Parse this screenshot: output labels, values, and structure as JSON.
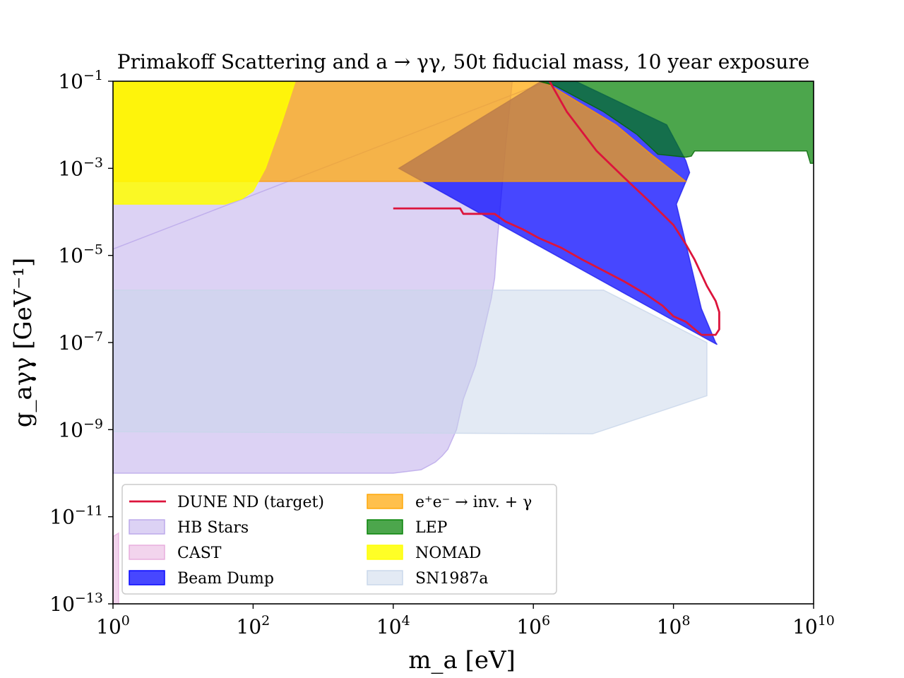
{
  "chart_data": {
    "type": "area",
    "title": "Primakoff Scattering and a → γγ, 50t fiducial mass, 10 year exposure",
    "xlabel": "m_a [eV]",
    "ylabel": "g_aγγ [GeV⁻¹]",
    "x_scale": "log",
    "y_scale": "log",
    "xlim": [
      1,
      10000000000
    ],
    "ylim": [
      1e-13,
      0.1
    ],
    "x_ticks": [
      {
        "base": "10",
        "exp": "0"
      },
      {
        "base": "10",
        "exp": "2"
      },
      {
        "base": "10",
        "exp": "4"
      },
      {
        "base": "10",
        "exp": "6"
      },
      {
        "base": "10",
        "exp": "8"
      },
      {
        "base": "10",
        "exp": "10"
      }
    ],
    "y_ticks": [
      {
        "base": "10",
        "exp": "−1"
      },
      {
        "base": "10",
        "exp": "−3"
      },
      {
        "base": "10",
        "exp": "−5"
      },
      {
        "base": "10",
        "exp": "−7"
      },
      {
        "base": "10",
        "exp": "−9"
      },
      {
        "base": "10",
        "exp": "−11"
      },
      {
        "base": "10",
        "exp": "−13"
      }
    ],
    "legend_position": "lower-left",
    "series": [
      {
        "name": "HB Stars",
        "kind": "region",
        "color": "#b9a6ea",
        "alpha": 0.5,
        "edge": "#b9a6ea",
        "points": [
          [
            1,
            1.4e-05
          ],
          [
            1600000.0,
            0.1
          ],
          [
            1,
            0.1
          ],
          [
            1,
            1e-10
          ],
          [
            10000.0,
            1e-10
          ],
          [
            25000.0,
            1.2e-10
          ],
          [
            40000.0,
            1.8e-10
          ],
          [
            50000.0,
            2.5e-10
          ],
          [
            60000.0,
            3.5e-10
          ],
          [
            80000.0,
            1e-09
          ],
          [
            100000.0,
            5e-09
          ],
          [
            150000.0,
            3e-08
          ],
          [
            250000.0,
            1e-06
          ],
          [
            280000.0,
            3e-06
          ],
          [
            300000.0,
            1.5e-05
          ],
          [
            400000.0,
            0.003
          ],
          [
            500000.0,
            0.1
          ],
          [
            1600000.0,
            0.1
          ]
        ]
      },
      {
        "name": "CAST",
        "kind": "region",
        "color": "#e6aadc",
        "alpha": 0.5,
        "edge": "#e6aadc",
        "points": [
          [
            1,
            3.5e-12
          ],
          [
            1.2,
            4.2e-12
          ],
          [
            1.2,
            1e-13
          ],
          [
            1,
            1e-13
          ]
        ]
      },
      {
        "name": "SN1987a",
        "kind": "region",
        "color": "#c8d6ea",
        "alpha": 0.5,
        "edge": "#c8d6ea",
        "points": [
          [
            1,
            1.6e-06
          ],
          [
            10000000.0,
            1.6e-06
          ],
          [
            300000000.0,
            1e-07
          ],
          [
            300000000.0,
            6e-09
          ],
          [
            7000000.0,
            8e-10
          ],
          [
            1,
            9e-10
          ]
        ]
      },
      {
        "name": "Beam Dump",
        "kind": "region",
        "color": "#0000ff",
        "alpha": 0.72,
        "edge": "#2020ee",
        "points": [
          [
            4000000.0,
            0.1
          ],
          [
            80000000.0,
            0.01
          ],
          [
            150000000.0,
            0.0015
          ],
          [
            170000000.0,
            0.0008
          ],
          [
            110000000.0,
            0.00015
          ],
          [
            250000000.0,
            6e-07
          ],
          [
            400000000.0,
            1e-07
          ],
          [
            420000000.0,
            9e-08
          ],
          [
            300000000.0,
            1.2e-07
          ],
          [
            12000.0,
            0.001
          ],
          [
            1300000.0,
            0.1
          ]
        ]
      },
      {
        "name": "e⁺e⁻ → inv. + γ",
        "kind": "region",
        "color": "#ffa500",
        "alpha": 0.7,
        "edge": "#ff9800",
        "points": [
          [
            1,
            0.1
          ],
          [
            1400000.0,
            0.1
          ],
          [
            15000000.0,
            0.01
          ],
          [
            50000000.0,
            0.002
          ],
          [
            150000000.0,
            0.0005
          ],
          [
            1,
            0.0005
          ]
        ]
      },
      {
        "name": "LEP",
        "kind": "region",
        "color": "#008000",
        "alpha": 0.7,
        "edge": "#006400",
        "points": [
          [
            1200000.0,
            0.1
          ],
          [
            10000000000.0,
            0.1
          ],
          [
            10000000000.0,
            0.0013
          ],
          [
            9000000000.0,
            0.0013
          ],
          [
            8000000000.0,
            0.0025
          ],
          [
            200000000.0,
            0.0025
          ],
          [
            180000000.0,
            0.0019
          ],
          [
            150000000.0,
            0.0018
          ],
          [
            80000000.0,
            0.002
          ],
          [
            60000000.0,
            0.0021
          ],
          [
            30000000.0,
            0.006
          ],
          [
            10000000.0,
            0.02
          ],
          [
            2000000.0,
            0.08
          ]
        ]
      },
      {
        "name": "NOMAD",
        "kind": "region",
        "color": "#ffff00",
        "alpha": 0.85,
        "edge": "#ffff00",
        "points": [
          [
            1,
            0.1
          ],
          [
            400,
            0.1
          ],
          [
            250,
            0.01
          ],
          [
            150,
            0.001
          ],
          [
            100,
            0.0003
          ],
          [
            70,
            0.0002
          ],
          [
            40,
            0.00015
          ],
          [
            1,
            0.00015
          ]
        ]
      },
      {
        "name": "DUNE ND (target)",
        "kind": "line",
        "color": "#dc143c",
        "points": [
          [
            10000.0,
            0.00012
          ],
          [
            90000.0,
            0.00012
          ],
          [
            100000.0,
            9e-05
          ],
          [
            280000.0,
            9e-05
          ],
          [
            400000.0,
            6e-05
          ],
          [
            700000.0,
            4e-05
          ],
          [
            1200000.0,
            2.5e-05
          ],
          [
            2500000.0,
            1.5e-05
          ],
          [
            5000000.0,
            8e-06
          ],
          [
            10000000.0,
            4.5e-06
          ],
          [
            20000000.0,
            2.5e-06
          ],
          [
            40000000.0,
            1.3e-06
          ],
          [
            70000000.0,
            7e-07
          ],
          [
            100000000.0,
            4e-07
          ],
          [
            150000000.0,
            3e-07
          ],
          [
            250000000.0,
            1.5e-07
          ],
          [
            400000000.0,
            1.5e-07
          ],
          [
            450000000.0,
            2e-07
          ],
          [
            450000000.0,
            5e-07
          ],
          [
            400000000.0,
            9e-07
          ],
          [
            300000000.0,
            2e-06
          ],
          [
            200000000.0,
            8e-06
          ],
          [
            150000000.0,
            1.8e-05
          ],
          [
            100000000.0,
            5e-05
          ],
          [
            50000000.0,
            0.00015
          ],
          [
            20000000.0,
            0.0006
          ],
          [
            8000000.0,
            0.0025
          ],
          [
            3000000.0,
            0.02
          ],
          [
            1700000.0,
            0.1
          ]
        ]
      }
    ],
    "legend": [
      {
        "label": "DUNE ND (target)",
        "kind": "line",
        "color": "#dc143c"
      },
      {
        "label": "HB Stars",
        "kind": "patch",
        "color": "#b9a6ea",
        "alpha": 0.5
      },
      {
        "label": "CAST",
        "kind": "patch",
        "color": "#e6aadc",
        "alpha": 0.5
      },
      {
        "label": "Beam Dump",
        "kind": "patch",
        "color": "#0000ff",
        "alpha": 0.72
      },
      {
        "label": "e⁺e⁻ → inv. + γ",
        "kind": "patch",
        "color": "#ffa500",
        "alpha": 0.7
      },
      {
        "label": "LEP",
        "kind": "patch",
        "color": "#008000",
        "alpha": 0.7
      },
      {
        "label": "NOMAD",
        "kind": "patch",
        "color": "#ffff00",
        "alpha": 0.85
      },
      {
        "label": "SN1987a",
        "kind": "patch",
        "color": "#c8d6ea",
        "alpha": 0.5
      }
    ]
  }
}
